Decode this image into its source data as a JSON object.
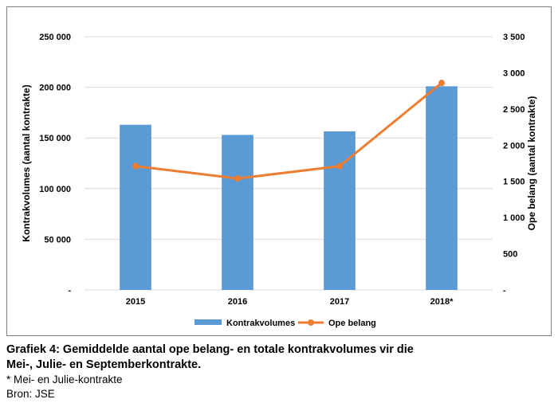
{
  "chart_data": {
    "type": "bar",
    "categories": [
      "2015",
      "2016",
      "2017",
      "2018*"
    ],
    "series": [
      {
        "name": "Kontrakvolumes",
        "type": "bar",
        "axis": "left",
        "color": "#5b9bd5",
        "values": [
          163000,
          153000,
          156500,
          201000
        ]
      },
      {
        "name": "Ope belang",
        "type": "line",
        "axis": "right",
        "color": "#ed7d31",
        "values": [
          1710,
          1540,
          1710,
          2860
        ]
      }
    ],
    "ylabel": "Kontrakvolumes (aantal kontrakte)",
    "y2label": "Ope belang (aantal kontrakte)",
    "ylim": [
      0,
      250000
    ],
    "y2lim": [
      0,
      3500
    ],
    "yticks": [
      0,
      50000,
      100000,
      150000,
      200000,
      250000
    ],
    "ytick_labels": [
      "-",
      "50 000",
      "100 000",
      "150 000",
      "200 000",
      "250 000"
    ],
    "y2ticks": [
      0,
      500,
      1000,
      1500,
      2000,
      2500,
      3000,
      3500
    ],
    "y2tick_labels": [
      "-",
      "500",
      "1 000",
      "1 500",
      "2 000",
      "2 500",
      "3 000",
      "3 500"
    ],
    "grid": true,
    "legend": "bottom"
  },
  "caption": {
    "title_line1": "Grafiek 4: Gemiddelde aantal ope belang- en totale kontrakvolumes vir die",
    "title_line2": "Mei-, Julie- en Septemberkontrakte.",
    "footnote": "* Mei- en Julie-kontrakte",
    "source": "Bron: JSE"
  }
}
